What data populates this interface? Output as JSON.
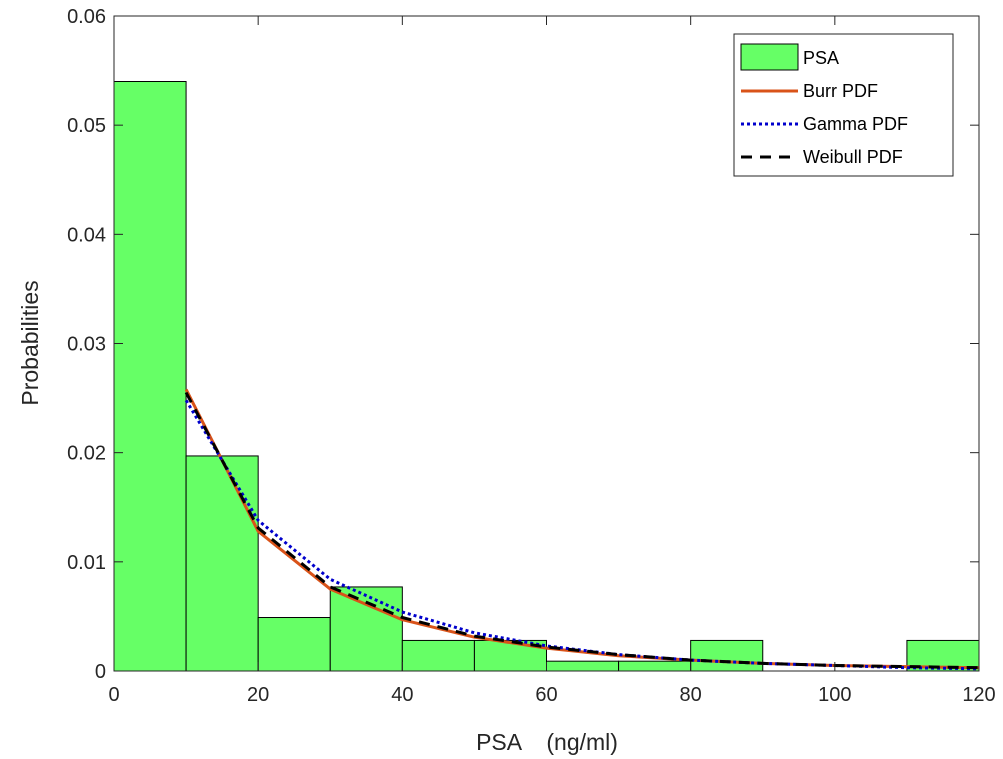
{
  "chart_data": {
    "type": "bar",
    "title": "",
    "xlabel": "PSA    (ng/ml)",
    "ylabel": "Probabilities",
    "xlim": [
      0,
      120
    ],
    "ylim": [
      0,
      0.06
    ],
    "xticks": [
      "0",
      "20",
      "40",
      "60",
      "80",
      "100",
      "120"
    ],
    "yticks": [
      "0",
      "0.01",
      "0.02",
      "0.03",
      "0.04",
      "0.05",
      "0.06"
    ],
    "grid": false,
    "legend_position": "top-right",
    "histogram": {
      "name": "PSA",
      "bin_edges": [
        0,
        10,
        20,
        30,
        40,
        50,
        60,
        70,
        80,
        90,
        100,
        110,
        120
      ],
      "values": [
        0.054,
        0.0197,
        0.0049,
        0.0077,
        0.0028,
        0.0028,
        0.0009,
        0.0009,
        0.0028,
        0.0,
        0.0,
        0.0028
      ],
      "color": "#66ff66"
    },
    "series": [
      {
        "name": "Burr PDF",
        "style": "solid",
        "color": "#d95319",
        "x": [
          10,
          20,
          30,
          40,
          50,
          60,
          70,
          80,
          90,
          100,
          110,
          120
        ],
        "y": [
          0.0258,
          0.0128,
          0.0075,
          0.0047,
          0.0031,
          0.0021,
          0.0014,
          0.001,
          0.0007,
          0.0005,
          0.0004,
          0.0003
        ]
      },
      {
        "name": "Gamma PDF",
        "style": "dotted",
        "color": "#0000cc",
        "x": [
          10,
          20,
          30,
          40,
          50,
          60,
          70,
          80,
          90,
          100,
          110,
          120
        ],
        "y": [
          0.0248,
          0.0138,
          0.0084,
          0.0054,
          0.0035,
          0.0023,
          0.0015,
          0.001,
          0.0007,
          0.0005,
          0.0003,
          0.0002
        ]
      },
      {
        "name": "Weibull PDF",
        "style": "dashed",
        "color": "#000000",
        "x": [
          10,
          20,
          30,
          40,
          50,
          60,
          70,
          80,
          90,
          100,
          110,
          120
        ],
        "y": [
          0.0255,
          0.0131,
          0.0077,
          0.0049,
          0.0032,
          0.0022,
          0.0015,
          0.001,
          0.0007,
          0.0005,
          0.0004,
          0.0003
        ]
      }
    ]
  }
}
